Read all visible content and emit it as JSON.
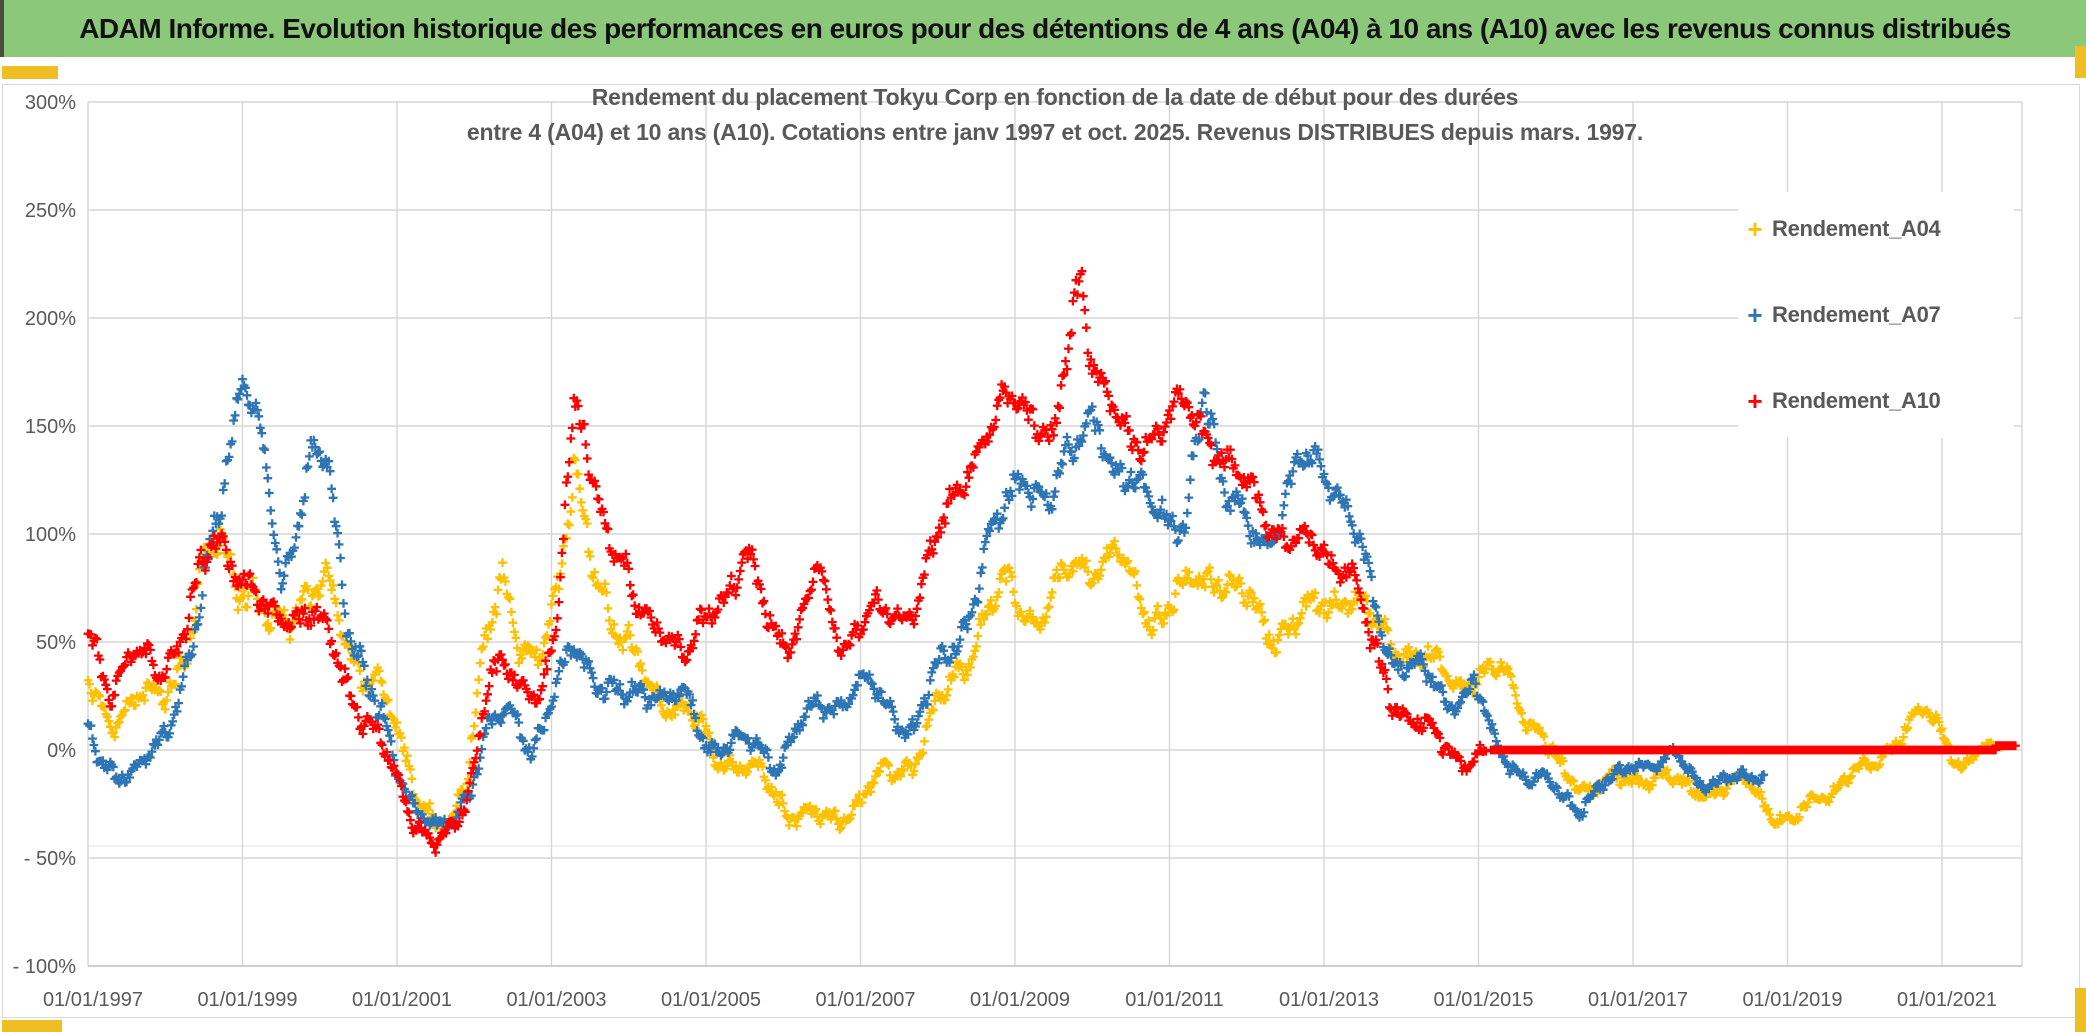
{
  "header": {
    "title": "ADAM Informe. Evolution historique des performances en euros pour des détentions de 4 ans (A04) à 10 ans (A10) avec les revenus connus distribués"
  },
  "chart_data": {
    "type": "scatter",
    "title_lines": [
      "Rendement du placement Tokyu Corp en fonction de la date de début pour des durées",
      "entre 4 (A04) et 10 ans (A10). Cotations entre janv 1997 et oct. 2025. Revenus DISTRIBUES depuis mars. 1997."
    ],
    "xlabel": "",
    "ylabel": "",
    "x_ticks": [
      {
        "label": "01/01/1997",
        "year": 1997
      },
      {
        "label": "01/01/1999",
        "year": 1999
      },
      {
        "label": "01/01/2001",
        "year": 2001
      },
      {
        "label": "01/01/2003",
        "year": 2003
      },
      {
        "label": "01/01/2005",
        "year": 2005
      },
      {
        "label": "01/01/2007",
        "year": 2007
      },
      {
        "label": "01/01/2009",
        "year": 2009
      },
      {
        "label": "01/01/2011",
        "year": 2011
      },
      {
        "label": "01/01/2013",
        "year": 2013
      },
      {
        "label": "01/01/2015",
        "year": 2015
      },
      {
        "label": "01/01/2017",
        "year": 2017
      },
      {
        "label": "01/01/2019",
        "year": 2019
      },
      {
        "label": "01/01/2021",
        "year": 2021
      }
    ],
    "y_ticks": [
      {
        "label": "300%",
        "value": 300
      },
      {
        "label": "250%",
        "value": 250
      },
      {
        "label": "200%",
        "value": 200
      },
      {
        "label": "150%",
        "value": 150
      },
      {
        "label": "100%",
        "value": 100
      },
      {
        "label": "50%",
        "value": 50
      },
      {
        "label": "0%",
        "value": 0
      },
      {
        "label": "- 50%",
        "value": -50
      },
      {
        "label": "- 100%",
        "value": -100
      }
    ],
    "x_range_years": [
      1997.0,
      2022.05
    ],
    "y_range_pct": [
      -100,
      300
    ],
    "grid": true,
    "legend_position": "right",
    "colors": {
      "grid": "#D6D6D6",
      "axis": "#BFBFBF",
      "text": "#595959"
    },
    "sampling_per_year": 52,
    "series": [
      {
        "name": "Rendement_A04",
        "color": "#FFC000",
        "seed": 11,
        "keyframes": [
          [
            1997.0,
            30,
            10
          ],
          [
            1997.35,
            15,
            9
          ],
          [
            1997.7,
            22,
            9
          ],
          [
            1998.0,
            30,
            10
          ],
          [
            1998.3,
            46,
            12
          ],
          [
            1998.55,
            85,
            18
          ],
          [
            1998.7,
            103,
            15
          ],
          [
            1999.0,
            75,
            14
          ],
          [
            1999.35,
            55,
            12
          ],
          [
            1999.7,
            70,
            13
          ],
          [
            2000.1,
            74,
            12
          ],
          [
            2000.45,
            45,
            12
          ],
          [
            2000.8,
            25,
            11
          ],
          [
            2001.1,
            -2,
            10
          ],
          [
            2001.45,
            -32,
            9
          ],
          [
            2001.7,
            -40,
            7
          ],
          [
            2001.9,
            -10,
            12
          ],
          [
            2002.15,
            62,
            16
          ],
          [
            2002.35,
            72,
            16
          ],
          [
            2002.6,
            42,
            12
          ],
          [
            2002.9,
            55,
            13
          ],
          [
            2003.1,
            76,
            14
          ],
          [
            2003.3,
            120,
            21
          ],
          [
            2003.6,
            85,
            16
          ],
          [
            2003.9,
            50,
            13
          ],
          [
            2004.3,
            30,
            11
          ],
          [
            2004.8,
            14,
            10
          ],
          [
            2005.2,
            -2,
            9
          ],
          [
            2005.75,
            -14,
            9
          ],
          [
            2006.2,
            -30,
            9
          ],
          [
            2006.55,
            -34,
            8
          ],
          [
            2006.9,
            -25,
            8
          ],
          [
            2007.3,
            -12,
            8
          ],
          [
            2007.7,
            -3,
            9
          ],
          [
            2008.1,
            25,
            12
          ],
          [
            2008.5,
            55,
            13
          ],
          [
            2008.9,
            75,
            13
          ],
          [
            2009.3,
            62,
            12
          ],
          [
            2009.8,
            85,
            11
          ],
          [
            2010.3,
            90,
            10
          ],
          [
            2010.75,
            62,
            11
          ],
          [
            2011.2,
            72,
            12
          ],
          [
            2011.6,
            84,
            12
          ],
          [
            2012.0,
            68,
            12
          ],
          [
            2012.35,
            55,
            11
          ],
          [
            2012.8,
            62,
            12
          ],
          [
            2013.25,
            74,
            12
          ],
          [
            2013.7,
            56,
            10
          ],
          [
            2014.2,
            42,
            10
          ],
          [
            2014.7,
            33,
            9
          ],
          [
            2015.1,
            33,
            8
          ],
          [
            2015.35,
            37,
            8
          ],
          [
            2015.7,
            12,
            8
          ],
          [
            2016.1,
            -12,
            7
          ],
          [
            2016.5,
            -16,
            6
          ],
          [
            2016.9,
            -15,
            6
          ],
          [
            2017.3,
            -11,
            6
          ],
          [
            2017.7,
            -18,
            6
          ],
          [
            2018.1,
            -18,
            6
          ],
          [
            2018.5,
            -15,
            6
          ],
          [
            2018.8,
            -28,
            6
          ],
          [
            2019.05,
            -35,
            6
          ],
          [
            2019.4,
            -22,
            6
          ],
          [
            2019.8,
            -12,
            5
          ],
          [
            2020.1,
            -8,
            5
          ],
          [
            2020.45,
            8,
            7
          ],
          [
            2020.75,
            16,
            7
          ],
          [
            2021.0,
            10,
            6
          ],
          [
            2021.25,
            -8,
            5
          ],
          [
            2021.5,
            -1,
            4
          ],
          [
            2021.8,
            3,
            3
          ]
        ],
        "flat_segments": []
      },
      {
        "name": "Rendement_A07",
        "color": "#2E75B6",
        "seed": 22,
        "keyframes": [
          [
            1997.0,
            12,
            9
          ],
          [
            1997.3,
            -8,
            9
          ],
          [
            1997.55,
            -16,
            8
          ],
          [
            1997.8,
            0,
            8
          ],
          [
            1998.1,
            18,
            9
          ],
          [
            1998.35,
            42,
            12
          ],
          [
            1998.6,
            95,
            18
          ],
          [
            1998.8,
            140,
            14
          ],
          [
            1999.0,
            172,
            12
          ],
          [
            1999.15,
            152,
            12
          ],
          [
            1999.3,
            130,
            11
          ],
          [
            1999.5,
            80,
            12
          ],
          [
            1999.7,
            105,
            13
          ],
          [
            1999.9,
            133,
            14
          ],
          [
            2000.1,
            132,
            15
          ],
          [
            2000.35,
            68,
            14
          ],
          [
            2000.65,
            25,
            12
          ],
          [
            2000.95,
            -5,
            11
          ],
          [
            2001.2,
            -22,
            9
          ],
          [
            2001.5,
            -38,
            7
          ],
          [
            2001.75,
            -34,
            7
          ],
          [
            2001.95,
            -12,
            9
          ],
          [
            2002.2,
            12,
            10
          ],
          [
            2002.5,
            15,
            9
          ],
          [
            2002.75,
            2,
            9
          ],
          [
            2003.0,
            22,
            10
          ],
          [
            2003.3,
            47,
            9
          ],
          [
            2003.6,
            34,
            9
          ],
          [
            2003.95,
            22,
            9
          ],
          [
            2004.3,
            28,
            9
          ],
          [
            2004.7,
            25,
            9
          ],
          [
            2005.0,
            2,
            8
          ],
          [
            2005.4,
            5,
            8
          ],
          [
            2005.9,
            -5,
            8
          ],
          [
            2006.3,
            15,
            8
          ],
          [
            2006.7,
            22,
            8
          ],
          [
            2007.0,
            32,
            8
          ],
          [
            2007.4,
            18,
            8
          ],
          [
            2007.7,
            10,
            8
          ],
          [
            2008.0,
            35,
            10
          ],
          [
            2008.4,
            65,
            13
          ],
          [
            2008.8,
            105,
            15
          ],
          [
            2009.1,
            133,
            13
          ],
          [
            2009.45,
            108,
            12
          ],
          [
            2009.8,
            148,
            13
          ],
          [
            2010.0,
            160,
            12
          ],
          [
            2010.3,
            120,
            12
          ],
          [
            2010.7,
            130,
            13
          ],
          [
            2011.0,
            100,
            12
          ],
          [
            2011.2,
            96,
            11
          ],
          [
            2011.45,
            178,
            19
          ],
          [
            2011.7,
            120,
            14
          ],
          [
            2012.0,
            100,
            11
          ],
          [
            2012.3,
            98,
            10
          ],
          [
            2012.65,
            128,
            13
          ],
          [
            2012.95,
            134,
            12
          ],
          [
            2013.25,
            118,
            12
          ],
          [
            2013.55,
            80,
            12
          ],
          [
            2013.85,
            45,
            9
          ],
          [
            2014.2,
            38,
            8
          ],
          [
            2014.6,
            22,
            8
          ],
          [
            2014.95,
            30,
            9
          ],
          [
            2015.2,
            2,
            7
          ],
          [
            2015.55,
            -10,
            6
          ],
          [
            2015.95,
            -18,
            6
          ],
          [
            2016.3,
            -25,
            6
          ],
          [
            2016.7,
            -15,
            5
          ],
          [
            2017.05,
            -4,
            5
          ],
          [
            2017.35,
            -8,
            5
          ],
          [
            2017.55,
            -2,
            5
          ],
          [
            2017.8,
            -12,
            5
          ],
          [
            2018.1,
            -16,
            5
          ],
          [
            2018.45,
            -13,
            5
          ],
          [
            2018.7,
            -10,
            4
          ]
        ],
        "flat_segments": []
      },
      {
        "name": "Rendement_A10",
        "color": "#FF0000",
        "seed": 33,
        "keyframes": [
          [
            1997.0,
            55,
            13
          ],
          [
            1997.3,
            30,
            10
          ],
          [
            1997.6,
            42,
            10
          ],
          [
            1997.9,
            38,
            10
          ],
          [
            1998.15,
            48,
            11
          ],
          [
            1998.4,
            70,
            13
          ],
          [
            1998.65,
            100,
            14
          ],
          [
            1998.8,
            95,
            13
          ],
          [
            1999.0,
            80,
            12
          ],
          [
            1999.3,
            60,
            11
          ],
          [
            1999.6,
            66,
            11
          ],
          [
            1999.9,
            62,
            10
          ],
          [
            2000.2,
            45,
            11
          ],
          [
            2000.55,
            18,
            11
          ],
          [
            2000.9,
            -8,
            10
          ],
          [
            2001.2,
            -28,
            9
          ],
          [
            2001.5,
            -45,
            6
          ],
          [
            2001.75,
            -38,
            7
          ],
          [
            2001.95,
            -14,
            9
          ],
          [
            2002.2,
            38,
            11
          ],
          [
            2002.5,
            30,
            10
          ],
          [
            2002.8,
            28,
            10
          ],
          [
            2003.05,
            52,
            12
          ],
          [
            2003.25,
            135,
            22
          ],
          [
            2003.38,
            155,
            19
          ],
          [
            2003.55,
            128,
            14
          ],
          [
            2003.8,
            95,
            13
          ],
          [
            2004.1,
            62,
            11
          ],
          [
            2004.45,
            60,
            11
          ],
          [
            2004.75,
            38,
            10
          ],
          [
            2005.05,
            66,
            12
          ],
          [
            2005.5,
            87,
            13
          ],
          [
            2005.85,
            58,
            11
          ],
          [
            2006.15,
            52,
            10
          ],
          [
            2006.45,
            80,
            13
          ],
          [
            2006.75,
            50,
            10
          ],
          [
            2007.05,
            60,
            10
          ],
          [
            2007.4,
            62,
            11
          ],
          [
            2007.75,
            72,
            12
          ],
          [
            2008.05,
            100,
            13
          ],
          [
            2008.35,
            133,
            12
          ],
          [
            2008.7,
            147,
            12
          ],
          [
            2009.0,
            167,
            13
          ],
          [
            2009.25,
            157,
            12
          ],
          [
            2009.5,
            138,
            11
          ],
          [
            2009.7,
            185,
            15
          ],
          [
            2009.85,
            225,
            20
          ],
          [
            2010.0,
            188,
            15
          ],
          [
            2010.2,
            162,
            12
          ],
          [
            2010.5,
            138,
            11
          ],
          [
            2010.8,
            150,
            12
          ],
          [
            2011.1,
            157,
            11
          ],
          [
            2011.35,
            152,
            11
          ],
          [
            2011.65,
            140,
            11
          ],
          [
            2011.95,
            122,
            11
          ],
          [
            2012.3,
            108,
            11
          ],
          [
            2012.65,
            95,
            10
          ],
          [
            2013.0,
            92,
            9
          ],
          [
            2013.35,
            84,
            9
          ],
          [
            2013.6,
            48,
            11
          ],
          [
            2013.9,
            25,
            10
          ],
          [
            2014.2,
            12,
            9
          ],
          [
            2014.55,
            2,
            8
          ],
          [
            2014.85,
            -4,
            7
          ],
          [
            2015.1,
            -2,
            4
          ]
        ],
        "flat_segments": [
          [
            2015.16,
            2021.7,
            0
          ],
          [
            2021.7,
            2021.95,
            2
          ]
        ]
      }
    ],
    "legend": [
      {
        "name": "Rendement_A04",
        "color": "#FFC000"
      },
      {
        "name": "Rendement_A07",
        "color": "#2E75B6"
      },
      {
        "name": "Rendement_A10",
        "color": "#FF0000"
      }
    ]
  }
}
